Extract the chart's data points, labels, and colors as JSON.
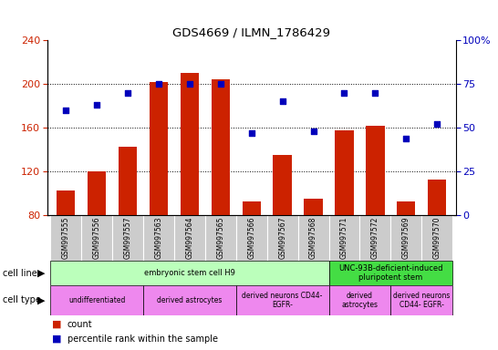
{
  "title": "GDS4669 / ILMN_1786429",
  "samples": [
    "GSM997555",
    "GSM997556",
    "GSM997557",
    "GSM997563",
    "GSM997564",
    "GSM997565",
    "GSM997566",
    "GSM997567",
    "GSM997568",
    "GSM997571",
    "GSM997572",
    "GSM997569",
    "GSM997570"
  ],
  "counts": [
    103,
    120,
    143,
    202,
    210,
    204,
    93,
    135,
    95,
    158,
    162,
    93,
    113
  ],
  "percentiles": [
    60,
    63,
    70,
    75,
    75,
    75,
    47,
    65,
    48,
    70,
    70,
    44,
    52
  ],
  "ylim_left": [
    80,
    240
  ],
  "ylim_right": [
    0,
    100
  ],
  "yticks_left": [
    80,
    120,
    160,
    200,
    240
  ],
  "yticks_right": [
    0,
    25,
    50,
    75,
    100
  ],
  "bar_color": "#cc2200",
  "dot_color": "#0000bb",
  "cell_line_groups": [
    {
      "label": "embryonic stem cell H9",
      "start": 0,
      "end": 9,
      "color": "#bbffbb"
    },
    {
      "label": "UNC-93B-deficient-induced\npluripotent stem",
      "start": 9,
      "end": 13,
      "color": "#44dd44"
    }
  ],
  "cell_type_groups": [
    {
      "label": "undifferentiated",
      "start": 0,
      "end": 3,
      "color": "#ee88ee"
    },
    {
      "label": "derived astrocytes",
      "start": 3,
      "end": 6,
      "color": "#ee88ee"
    },
    {
      "label": "derived neurons CD44-\nEGFR-",
      "start": 6,
      "end": 9,
      "color": "#ee88ee"
    },
    {
      "label": "derived\nastrocytes",
      "start": 9,
      "end": 11,
      "color": "#ee88ee"
    },
    {
      "label": "derived neurons\nCD44- EGFR-",
      "start": 11,
      "end": 13,
      "color": "#ee88ee"
    }
  ],
  "tick_bg_color": "#cccccc",
  "left_label_color": "#cc2200",
  "right_label_color": "#0000bb"
}
